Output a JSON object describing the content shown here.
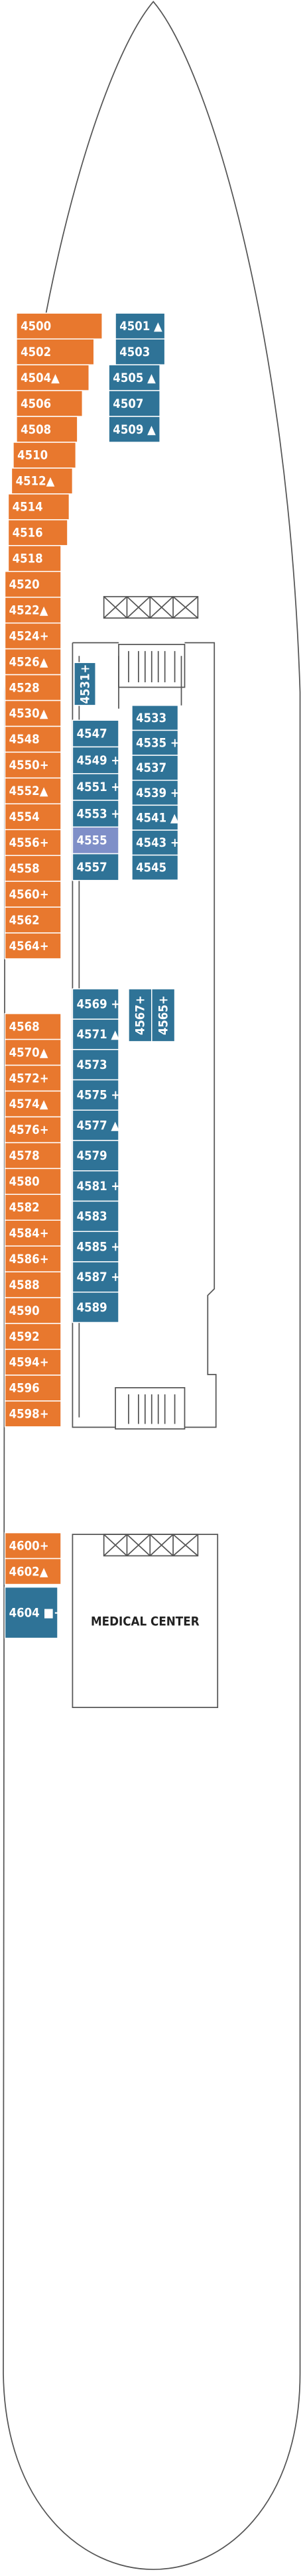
{
  "port_forward": [
    "4500",
    "4502",
    "4504▲",
    "4506",
    "4508",
    "4510",
    "4512▲",
    "4514",
    "4516",
    "4518",
    "4520",
    "4522▲",
    "4524+",
    "4526▲",
    "4528",
    "4530▲",
    "4548",
    "4550+",
    "4552▲",
    "4554",
    "4556+",
    "4558",
    "4560+",
    "4562",
    "4564+"
  ],
  "port_aft": [
    "4568",
    "4570▲",
    "4572+",
    "4574▲",
    "4576+",
    "4578",
    "4580",
    "4582",
    "4584+",
    "4586+",
    "4588",
    "4590",
    "4592",
    "4594+",
    "4596",
    "4598+"
  ],
  "port_stern": [
    "4600+",
    "4602▲"
  ],
  "suite_aft": "4604 ■+",
  "fore_inboard": [
    "4501 ▲",
    "4503",
    "4505 ▲",
    "4507",
    "4509 ▲"
  ],
  "mid_inner": [
    "4547",
    "4549 +",
    "4551 +",
    "4553 +",
    "4555",
    "4557"
  ],
  "mid_outer": [
    "4533",
    "4535 +",
    "4537",
    "4539 +",
    "4541 ▲",
    "4543 +",
    "4545"
  ],
  "mid_vertical": "4531+",
  "aft_inner": [
    "4569 +",
    "4571 ▲",
    "4573",
    "4575 +",
    "4577 ▲",
    "4579",
    "4581 +",
    "4583",
    "4585 +",
    "4587 +",
    "4589"
  ],
  "aft_vertical": [
    "4567+",
    "4565+"
  ],
  "medical": "MEDICAL CENTER"
}
